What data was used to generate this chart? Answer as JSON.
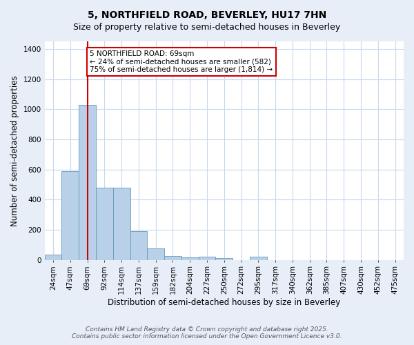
{
  "title_line1": "5, NORTHFIELD ROAD, BEVERLEY, HU17 7HN",
  "title_line2": "Size of property relative to semi-detached houses in Beverley",
  "xlabel": "Distribution of semi-detached houses by size in Beverley",
  "ylabel": "Number of semi-detached properties",
  "categories": [
    "24sqm",
    "47sqm",
    "69sqm",
    "92sqm",
    "114sqm",
    "137sqm",
    "159sqm",
    "182sqm",
    "204sqm",
    "227sqm",
    "250sqm",
    "272sqm",
    "295sqm",
    "317sqm",
    "340sqm",
    "362sqm",
    "385sqm",
    "407sqm",
    "430sqm",
    "452sqm",
    "475sqm"
  ],
  "values": [
    35,
    590,
    1030,
    480,
    480,
    190,
    75,
    25,
    18,
    20,
    10,
    0,
    20,
    0,
    0,
    0,
    0,
    0,
    0,
    0,
    0
  ],
  "bar_color": "#b8d0e8",
  "bar_edge_color": "#6699bb",
  "highlight_index": 2,
  "highlight_line_color": "#cc0000",
  "annotation_text": "5 NORTHFIELD ROAD: 69sqm\n← 24% of semi-detached houses are smaller (582)\n75% of semi-detached houses are larger (1,814) →",
  "annotation_box_color": "#ffffff",
  "annotation_box_edge_color": "#cc0000",
  "ylim": [
    0,
    1450
  ],
  "yticks": [
    0,
    200,
    400,
    600,
    800,
    1000,
    1200,
    1400
  ],
  "footnote": "Contains HM Land Registry data © Crown copyright and database right 2025.\nContains public sector information licensed under the Open Government Licence v3.0.",
  "background_color": "#e8eef8",
  "plot_background_color": "#ffffff",
  "grid_color": "#c8d8ee",
  "title_fontsize": 10,
  "subtitle_fontsize": 9,
  "axis_label_fontsize": 8.5,
  "tick_fontsize": 7.5,
  "annotation_fontsize": 7.5,
  "footnote_fontsize": 6.5
}
